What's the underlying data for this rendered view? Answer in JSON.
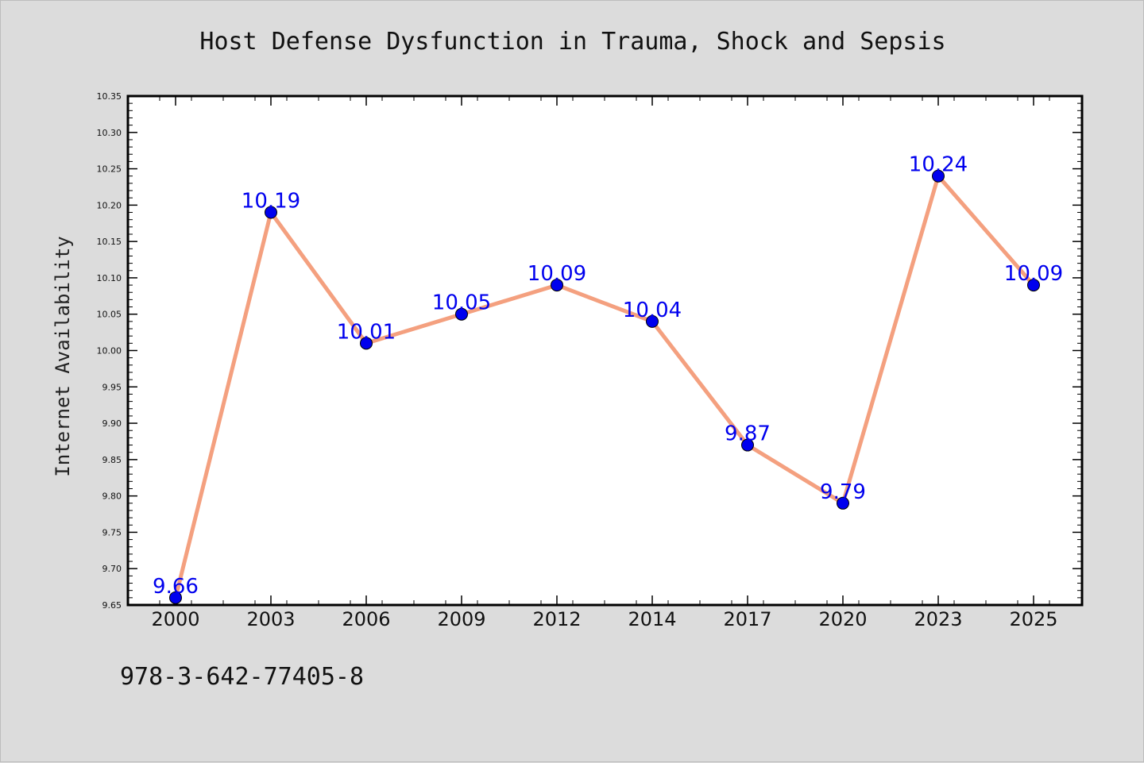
{
  "chart_data": {
    "type": "line",
    "title": "Host Defense Dysfunction in Trauma, Shock and Sepsis",
    "xlabel": "",
    "ylabel": "Internet Availability",
    "categories": [
      "2000",
      "2003",
      "2006",
      "2009",
      "2012",
      "2014",
      "2017",
      "2020",
      "2023",
      "2025"
    ],
    "series": [
      {
        "values": [
          9.66,
          10.19,
          10.01,
          10.05,
          10.09,
          10.04,
          9.87,
          9.79,
          10.24,
          10.09
        ],
        "labels": [
          "9.66",
          "10.19",
          "10.01",
          "10.05",
          "10.09",
          "10.04",
          "9.87",
          "9.79",
          "10.24",
          "10.09"
        ],
        "line_color": "#f4a07f",
        "marker_color": "#0000ee",
        "label_color": "#0000ee"
      }
    ],
    "ylim": [
      9.65,
      10.35
    ],
    "yticks": [
      "9.65",
      "9.70",
      "9.75",
      "9.80",
      "9.85",
      "9.90",
      "9.95",
      "10.00",
      "10.05",
      "10.10",
      "10.15",
      "10.20",
      "10.25",
      "10.30",
      "10.35"
    ],
    "grid": false,
    "legend": "none"
  },
  "footer": {
    "identifier": "978-3-642-77405-8"
  }
}
